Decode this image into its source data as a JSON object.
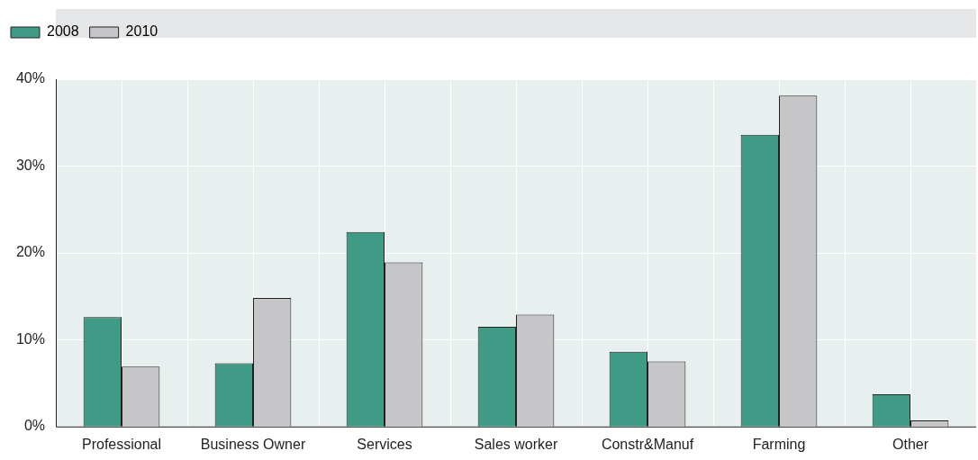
{
  "chart_data": {
    "type": "bar",
    "categories": [
      "Professional",
      "Business Owner",
      "Services",
      "Sales worker",
      "Constr&Manuf",
      "Farming",
      "Other"
    ],
    "series": [
      {
        "name": "2008",
        "color": "#3f9a86",
        "values": [
          12.6,
          7.3,
          22.4,
          11.5,
          8.6,
          33.6,
          3.7
        ]
      },
      {
        "name": "2010",
        "color": "#c6c6c8",
        "values": [
          6.9,
          14.8,
          18.9,
          12.9,
          7.5,
          38.1,
          0.7
        ]
      }
    ],
    "ylim": [
      0,
      40
    ],
    "yticks": [
      {
        "value": 0,
        "label": "0%"
      },
      {
        "value": 10,
        "label": "10%"
      },
      {
        "value": 20,
        "label": "20%"
      },
      {
        "value": 30,
        "label": "30%"
      },
      {
        "value": 40,
        "label": "40%"
      }
    ],
    "grid": true,
    "legend": "top left"
  }
}
